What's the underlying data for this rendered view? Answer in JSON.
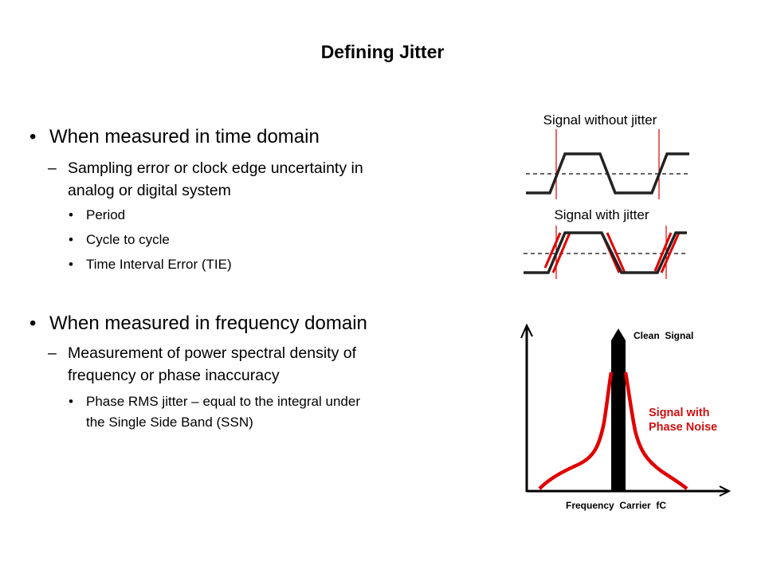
{
  "slide": {
    "title": "Defining Jitter",
    "sections": [
      {
        "bullet": "When measured in time domain",
        "sub": {
          "lines": [
            "Sampling error or clock edge uncertainty in",
            "analog or digital system"
          ],
          "items": [
            "Period",
            "Cycle to cycle",
            "Time Interval Error (TIE)"
          ]
        }
      },
      {
        "bullet": "When measured in frequency domain",
        "sub": {
          "lines": [
            "Measurement of power spectral density of",
            "frequency or phase inaccuracy"
          ],
          "items_lines": [
            "Phase RMS jitter – equal to the integral under",
            "the Single Side Band (SSN)"
          ]
        }
      }
    ]
  },
  "figures": {
    "waveform_clean_label": "Signal without jitter",
    "waveform_jitter_label": "Signal with jitter",
    "spectrum_clean_label": "Clean  Signal",
    "spectrum_noise_label_1": "Signal with",
    "spectrum_noise_label_2": "Phase Noise",
    "spectrum_axis_label": "Frequency  Carrier  fC"
  },
  "colors": {
    "signal": "#000000",
    "jitter": "#e00000",
    "noise_text": "#d01010"
  }
}
